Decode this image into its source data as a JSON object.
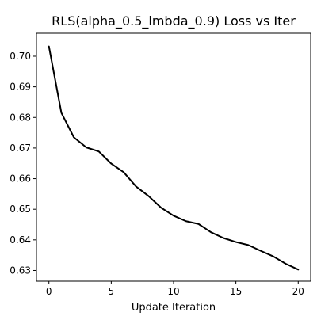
{
  "chart_data": {
    "type": "line",
    "title": "RLS(alpha_0.5_lmbda_0.9) Loss vs Iter",
    "xlabel": "Update Iteration",
    "ylabel": "",
    "xlim": [
      -1,
      21
    ],
    "ylim": [
      0.6265,
      0.7075
    ],
    "x_ticks": [
      0,
      5,
      10,
      15,
      20
    ],
    "x_tick_labels": [
      "0",
      "5",
      "10",
      "15",
      "20"
    ],
    "y_ticks": [
      0.63,
      0.64,
      0.65,
      0.66,
      0.67,
      0.68,
      0.69,
      0.7
    ],
    "y_tick_labels": [
      "0.63",
      "0.64",
      "0.65",
      "0.66",
      "0.67",
      "0.68",
      "0.69",
      "0.70"
    ],
    "grid": false,
    "legend": "none",
    "series": [
      {
        "color": "#000000",
        "x": [
          0,
          1,
          2,
          3,
          4,
          5,
          6,
          7,
          8,
          9,
          10,
          11,
          12,
          13,
          14,
          15,
          16,
          17,
          18,
          19,
          20
        ],
        "y": [
          0.7032,
          0.6815,
          0.6735,
          0.6702,
          0.6689,
          0.6649,
          0.6621,
          0.6574,
          0.6543,
          0.6505,
          0.6479,
          0.6461,
          0.6452,
          0.6425,
          0.6406,
          0.6393,
          0.6383,
          0.6364,
          0.6346,
          0.6322,
          0.6303
        ]
      }
    ]
  }
}
